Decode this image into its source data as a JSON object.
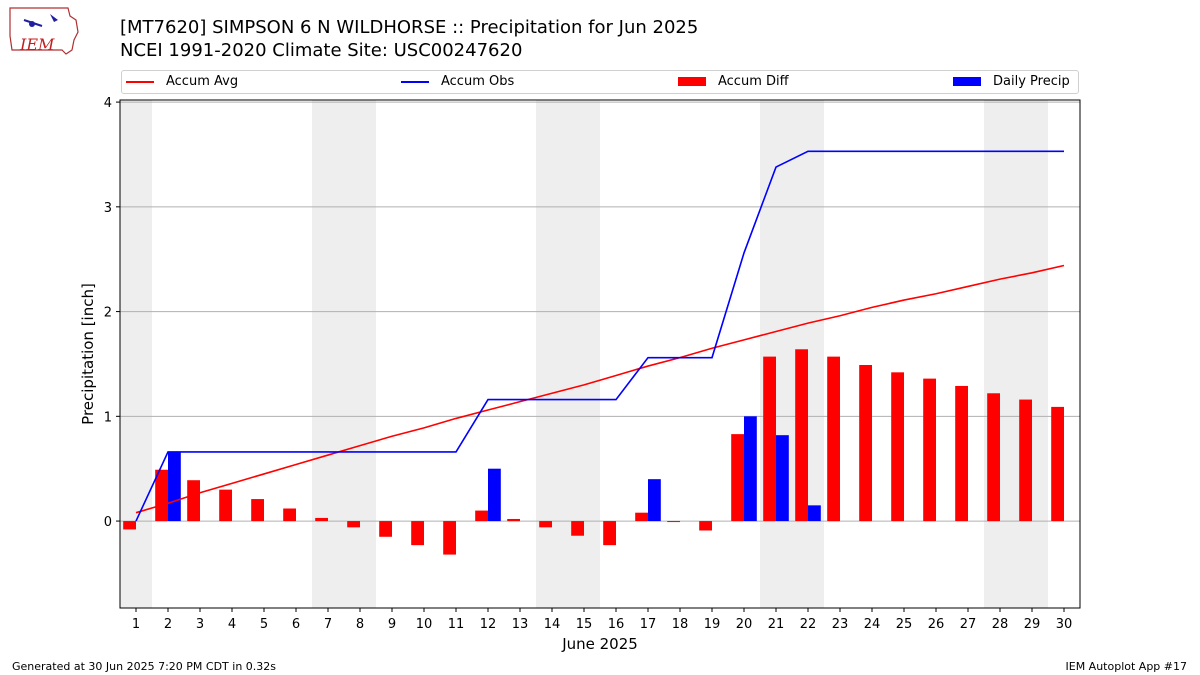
{
  "header": {
    "title_line1": "[MT7620] SIMPSON 6 N WILDHORSE :: Precipitation for Jun 2025",
    "title_line2": "NCEI 1991-2020 Climate Site: USC00247620",
    "logo_text": "IEM"
  },
  "legend": {
    "accum_avg": "Accum Avg",
    "accum_obs": "Accum Obs",
    "accum_diff": "Accum Diff",
    "daily_precip": "Daily Precip"
  },
  "footer": {
    "generated": "Generated at 30 Jun 2025 7:20 PM CDT in 0.32s",
    "app": "IEM Autoplot App #17"
  },
  "colors": {
    "avg": "#ff0000",
    "obs": "#0000ff",
    "diff": "#ff0000",
    "daily": "#0000ff",
    "weekend": "#eeeeee",
    "grid": "#b0b0b0"
  },
  "chart_data": {
    "type": "bar",
    "title": "[MT7620] SIMPSON 6 N WILDHORSE :: Precipitation for Jun 2025",
    "subtitle": "NCEI 1991-2020 Climate Site: USC00247620",
    "xlabel": "June 2025",
    "ylabel": "Precipitation [inch]",
    "xlim": [
      0.5,
      30.5
    ],
    "ylim": [
      -0.83,
      4.02
    ],
    "yticks": [
      0,
      1,
      2,
      3,
      4
    ],
    "grid": "horizontal",
    "legend_position": "top",
    "x": [
      1,
      2,
      3,
      4,
      5,
      6,
      7,
      8,
      9,
      10,
      11,
      12,
      13,
      14,
      15,
      16,
      17,
      18,
      19,
      20,
      21,
      22,
      23,
      24,
      25,
      26,
      27,
      28,
      29,
      30
    ],
    "shaded_days": [
      1,
      7,
      8,
      14,
      15,
      21,
      22,
      28,
      29
    ],
    "series": [
      {
        "name": "Accum Avg",
        "kind": "line",
        "values": [
          0.08,
          0.17,
          0.27,
          0.36,
          0.45,
          0.54,
          0.63,
          0.72,
          0.81,
          0.89,
          0.98,
          1.06,
          1.14,
          1.22,
          1.3,
          1.39,
          1.48,
          1.56,
          1.65,
          1.73,
          1.81,
          1.89,
          1.96,
          2.04,
          2.11,
          2.17,
          2.24,
          2.31,
          2.37,
          2.44
        ]
      },
      {
        "name": "Accum Obs",
        "kind": "line",
        "values": [
          0.0,
          0.66,
          0.66,
          0.66,
          0.66,
          0.66,
          0.66,
          0.66,
          0.66,
          0.66,
          0.66,
          1.16,
          1.16,
          1.16,
          1.16,
          1.16,
          1.56,
          1.56,
          1.56,
          2.56,
          3.38,
          3.53,
          3.53,
          3.53,
          3.53,
          3.53,
          3.53,
          3.53,
          3.53,
          3.53
        ]
      },
      {
        "name": "Accum Diff",
        "kind": "bar",
        "values": [
          -0.08,
          0.49,
          0.39,
          0.3,
          0.21,
          0.12,
          0.03,
          -0.06,
          -0.15,
          -0.23,
          -0.32,
          0.1,
          0.02,
          -0.06,
          -0.14,
          -0.23,
          0.08,
          0.0,
          -0.09,
          0.83,
          1.57,
          1.64,
          1.57,
          1.49,
          1.42,
          1.36,
          1.29,
          1.22,
          1.16,
          1.09
        ]
      },
      {
        "name": "Daily Precip",
        "kind": "bar",
        "values": [
          0,
          0.66,
          0,
          0,
          0,
          0,
          0,
          0,
          0,
          0,
          0,
          0.5,
          0,
          0,
          0,
          0,
          0.4,
          0,
          0,
          1.0,
          0.82,
          0.15,
          0,
          0,
          0,
          0,
          0,
          0,
          0,
          0
        ]
      }
    ]
  }
}
